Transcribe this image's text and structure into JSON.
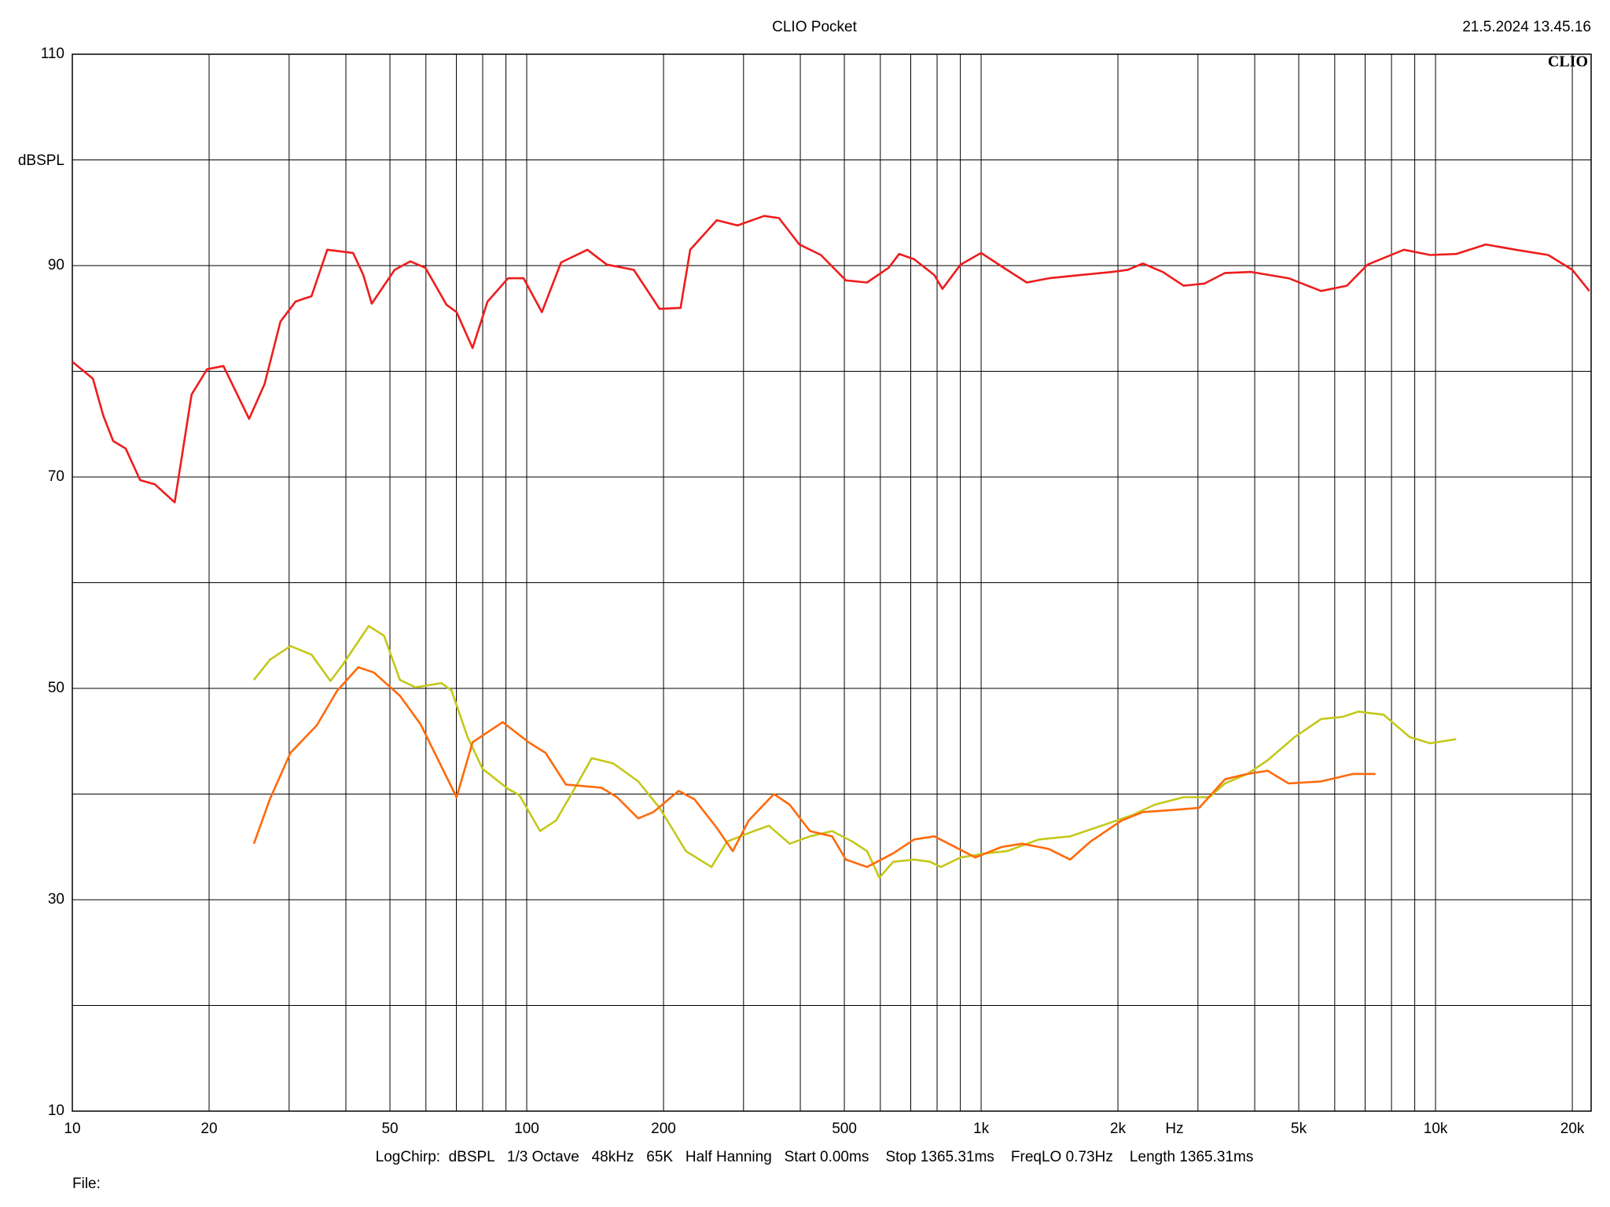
{
  "chart_data": {
    "type": "line",
    "title": "CLIO Pocket",
    "timestamp": "21.5.2024 13.45.16",
    "logo": "CLIO",
    "y_label": "dBSPL",
    "x_label": "Hz",
    "footer": "LogChirp:  dBSPL   1/3 Octave   48kHz   65K   Half Hanning   Start 0.00ms    Stop 1365.31ms    FreqLO 0.73Hz    Length 1365.31ms",
    "file_label": "File:",
    "x_scale": "log",
    "grid": true,
    "xlim": [
      10,
      22000
    ],
    "ylim": [
      10,
      110
    ],
    "xticks": [
      10,
      20,
      50,
      100,
      200,
      500,
      {
        "value": 1000,
        "label": "1k"
      },
      {
        "value": 2000,
        "label": "2k"
      },
      {
        "value": 5000,
        "label": "5k"
      },
      {
        "value": 10000,
        "label": "10k"
      },
      {
        "value": 20000,
        "label": "20k"
      }
    ],
    "minor_xticks": [
      30,
      40,
      60,
      70,
      80,
      90,
      300,
      400,
      600,
      700,
      800,
      900,
      3000,
      4000,
      6000,
      7000,
      8000,
      9000
    ],
    "yticks": [
      10,
      30,
      50,
      70,
      90,
      110
    ],
    "minor_yticks": [
      20,
      40,
      60,
      80,
      100
    ],
    "series": [
      {
        "color": "#ee1c1c",
        "x": [
          10,
          11.1,
          11.7,
          12.3,
          13.1,
          14.1,
          15.2,
          16.8,
          18.3,
          19.8,
          21.5,
          24.5,
          26.5,
          28.7,
          31,
          33.6,
          36.4,
          41.5,
          43.7,
          45.6,
          51.2,
          55.4,
          59.8,
          66.6,
          70.1,
          76,
          82,
          91,
          98.4,
          108,
          119,
          136,
          150,
          172,
          196,
          218,
          229,
          262,
          291,
          333,
          359,
          398,
          444,
          504,
          561,
          626,
          660,
          712,
          789,
          822,
          901,
          1000,
          1140,
          1260,
          1410,
          1650,
          1940,
          2100,
          2270,
          2510,
          2790,
          3100,
          3440,
          3930,
          4750,
          5600,
          6380,
          7090,
          8520,
          9730,
          11100,
          12900,
          15000,
          17700,
          20000,
          21800
        ],
        "values": [
          80.9,
          79.3,
          75.8,
          73.4,
          72.7,
          69.7,
          69.3,
          67.6,
          77.8,
          80.2,
          80.5,
          75.5,
          78.8,
          84.7,
          86.6,
          87.1,
          91.5,
          91.2,
          89.1,
          86.4,
          89.6,
          90.4,
          89.8,
          86.3,
          85.6,
          82.2,
          86.6,
          88.8,
          88.8,
          85.6,
          90.3,
          91.5,
          90.1,
          89.6,
          85.9,
          86,
          91.5,
          94.3,
          93.8,
          94.7,
          94.5,
          92,
          91,
          88.6,
          88.4,
          89.8,
          91.1,
          90.6,
          89.1,
          87.8,
          90.1,
          91.2,
          89.6,
          88.4,
          88.8,
          89.1,
          89.4,
          89.6,
          90.2,
          89.4,
          88.1,
          88.3,
          89.3,
          89.4,
          88.8,
          87.6,
          88.1,
          90.1,
          91.5,
          91,
          91.1,
          92,
          91.5,
          91,
          89.6,
          87.6
        ]
      },
      {
        "color": "#c4c81a",
        "x": [
          25.1,
          27.2,
          30.2,
          33.6,
          37,
          39.3,
          44.9,
          48.5,
          52.6,
          56.9,
          64.9,
          68.3,
          74.1,
          79.9,
          90.9,
          96.3,
          107,
          116,
          129,
          139,
          155,
          176,
          196,
          224,
          255,
          276,
          316,
          341,
          379,
          420,
          470,
          521,
          561,
          597,
          641,
          712,
          771,
          815,
          901,
          1030,
          1140,
          1340,
          1570,
          1840,
          2150,
          2410,
          2790,
          3180,
          3440,
          3850,
          4270,
          4900,
          5600,
          6240,
          6760,
          7690,
          8770,
          9730,
          11100
        ],
        "values": [
          50.8,
          52.7,
          54,
          53.2,
          50.7,
          52.2,
          55.9,
          55,
          50.8,
          50.1,
          50.5,
          49.8,
          45.4,
          42.4,
          40.5,
          39.9,
          36.5,
          37.5,
          40.9,
          43.4,
          42.9,
          41.2,
          38.7,
          34.6,
          33.1,
          35.5,
          36.5,
          37,
          35.3,
          36,
          36.5,
          35.5,
          34.6,
          32.1,
          33.6,
          33.8,
          33.6,
          33.1,
          34,
          34.4,
          34.6,
          35.7,
          36,
          37,
          38,
          39,
          39.7,
          39.7,
          41,
          41.9,
          43.2,
          45.4,
          47.1,
          47.3,
          47.8,
          47.5,
          45.4,
          44.8,
          45.2
        ]
      },
      {
        "color": "#ff6a0a",
        "x": [
          25.1,
          27.2,
          30.2,
          34.5,
          38.3,
          42.6,
          46.1,
          52.6,
          58.4,
          64.9,
          70.1,
          76,
          88.5,
          101,
          110,
          122,
          146,
          158,
          176,
          190,
          216,
          234,
          262,
          284,
          308,
          350,
          379,
          420,
          470,
          504,
          561,
          641,
          712,
          789,
          876,
          971,
          1110,
          1230,
          1410,
          1570,
          1740,
          2040,
          2270,
          2650,
          3020,
          3440,
          3850,
          4270,
          4750,
          5600,
          6580,
          7380
        ],
        "values": [
          35.3,
          39.5,
          43.9,
          46.5,
          49.8,
          52,
          51.5,
          49.3,
          46.6,
          42.6,
          39.7,
          44.9,
          46.8,
          44.9,
          43.9,
          40.9,
          40.6,
          39.7,
          37.7,
          38.3,
          40.3,
          39.5,
          36.8,
          34.6,
          37.5,
          40,
          39,
          36.5,
          36,
          33.8,
          33.1,
          34.4,
          35.7,
          36,
          35,
          34,
          35,
          35.3,
          34.8,
          33.8,
          35.5,
          37.5,
          38.3,
          38.5,
          38.7,
          41.4,
          41.9,
          42.2,
          41,
          41.2,
          41.9,
          41.9
        ]
      }
    ]
  }
}
